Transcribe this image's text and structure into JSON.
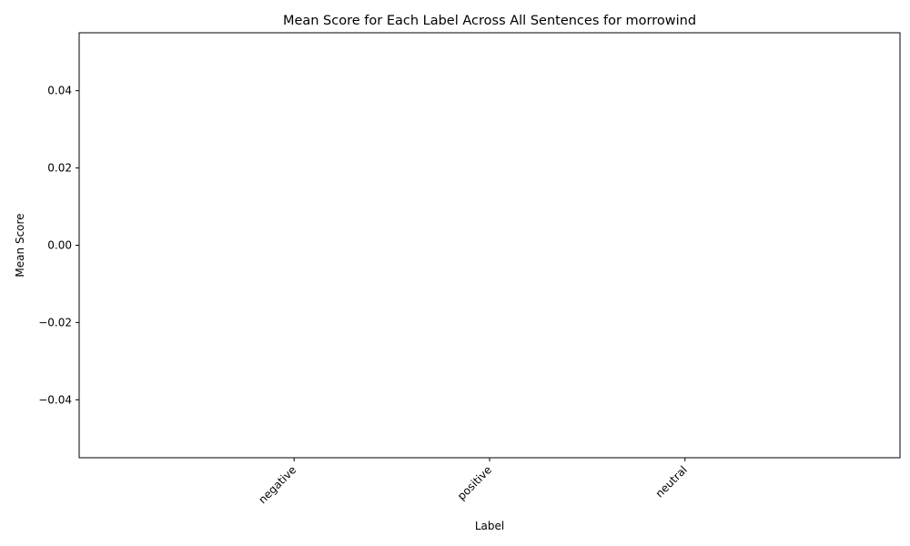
{
  "chart_data": {
    "type": "bar",
    "title": "Mean Score for Each Label Across All Sentences for morrowind",
    "xlabel": "Label",
    "ylabel": "Mean Score",
    "categories": [
      "negative",
      "positive",
      "neutral"
    ],
    "values": [
      0,
      0,
      0
    ],
    "ylim": [
      -0.055,
      0.055
    ],
    "yticks": [
      0.04,
      0.02,
      0.0,
      -0.02,
      -0.04
    ],
    "ytick_labels": [
      "0.04",
      "0.02",
      "0.00",
      "−0.02",
      "−0.04"
    ],
    "grid": false,
    "legend": "none",
    "colors": {
      "bar": "#1f77b4",
      "axis": "#000000",
      "background": "#ffffff"
    }
  }
}
